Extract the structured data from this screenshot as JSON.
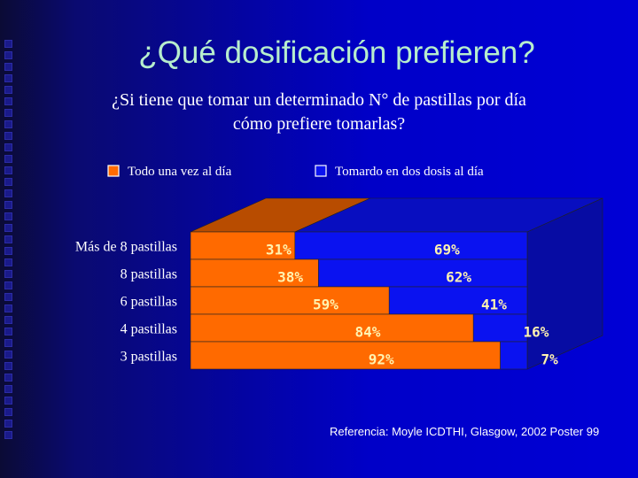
{
  "title": "¿Qué dosificación prefieren?",
  "subtitle": {
    "line1": "¿Si tiene que tomar un determinado N° de pastillas por día",
    "line2": "cómo prefiere tomarlas?"
  },
  "reference": "Referencia: Moyle ICDTHI, Glasgow, 2002 Poster 99",
  "colors": {
    "series1": "#ff6a00",
    "series2": "#0a12f0",
    "label": "#ffffff",
    "value_label": "#fff3b0"
  },
  "chart_data": {
    "type": "bar",
    "orientation": "horizontal",
    "stacked": "percent",
    "three_d": true,
    "categories": [
      "Más de 8 pastillas",
      "8 pastillas",
      "6 pastillas",
      "4 pastillas",
      "3 pastillas"
    ],
    "series": [
      {
        "name": "Todo una vez al día",
        "values": [
          31,
          38,
          59,
          84,
          92
        ],
        "labels": [
          "31%",
          "38%",
          "59%",
          "84%",
          "92%"
        ]
      },
      {
        "name": "Tomardo en dos dosis al día",
        "values": [
          69,
          62,
          41,
          16,
          7
        ],
        "labels": [
          "69%",
          "62%",
          "41%",
          "16%",
          "7%"
        ]
      }
    ],
    "xlim": [
      0,
      100
    ],
    "legend": "top"
  }
}
